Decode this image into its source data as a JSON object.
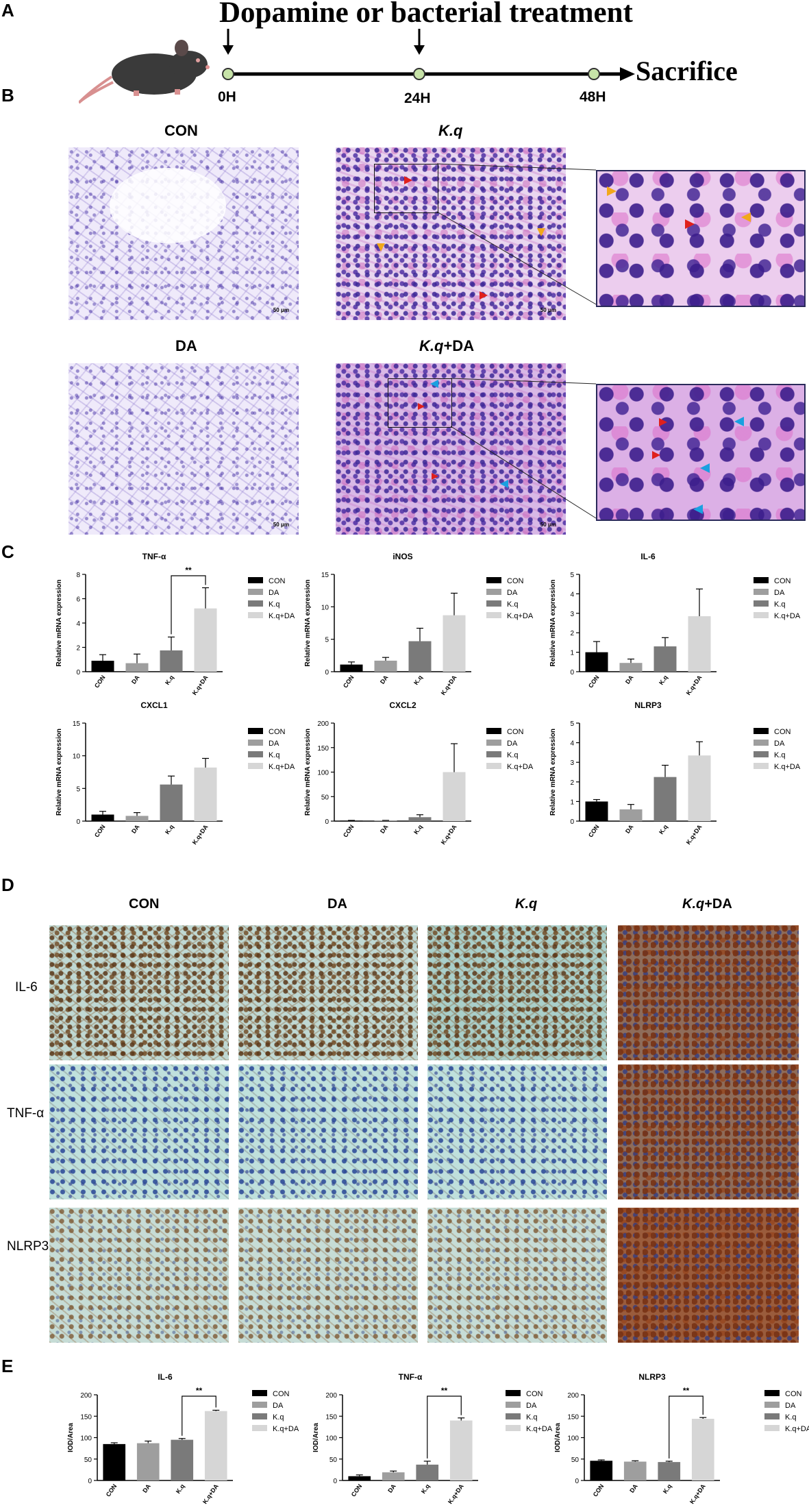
{
  "panels": {
    "A": "A",
    "B": "B",
    "C": "C",
    "D": "D",
    "E": "E"
  },
  "timeline": {
    "title": "Dopamine or bacterial treatment",
    "end_label": "Sacrifice",
    "timepoints": [
      "0H",
      "24H",
      "48H"
    ]
  },
  "he": {
    "con": "CON",
    "kq": "K.q",
    "da": "DA",
    "kqda_italic": "K.q",
    "kqda_rest": "+DA",
    "scale": "50 μm"
  },
  "ihc": {
    "columns": [
      "CON",
      "DA",
      "K.q",
      "+DA"
    ],
    "col4_italic": "K.q",
    "rows": [
      "IL-6",
      "TNF-α",
      "NLRP3"
    ]
  },
  "colors": {
    "con": "#000000",
    "da": "#9e9e9e",
    "kq": "#7a7a7a",
    "kqda": "#d6d6d6"
  },
  "legend_labels": [
    "CON",
    "DA",
    "K.q",
    "K.q+DA"
  ],
  "chart_data": [
    {
      "panel": "C",
      "type": "bar",
      "title": "TNF-α",
      "ylabel": "Relative mRNA expression",
      "categories": [
        "CON",
        "DA",
        "K.q",
        "K.q+DA"
      ],
      "values": [
        0.9,
        0.7,
        1.75,
        5.2
      ],
      "errors": [
        0.5,
        0.75,
        1.1,
        1.7
      ],
      "ylim": [
        0,
        8
      ],
      "yticks": [
        0,
        2,
        4,
        6,
        8
      ],
      "sig": {
        "from": 2,
        "to": 3,
        "label": "**"
      }
    },
    {
      "panel": "C",
      "type": "bar",
      "title": "iNOS",
      "ylabel": "Relative mRNA expression",
      "categories": [
        "CON",
        "DA",
        "K.q",
        "K.q+DA"
      ],
      "values": [
        1.1,
        1.7,
        4.7,
        8.7
      ],
      "errors": [
        0.4,
        0.5,
        2.0,
        3.4
      ],
      "ylim": [
        0,
        15
      ],
      "yticks": [
        0,
        5,
        10,
        15
      ]
    },
    {
      "panel": "C",
      "type": "bar",
      "title": "IL-6",
      "ylabel": "Relative mRNA expression",
      "categories": [
        "CON",
        "DA",
        "K.q",
        "K.q+DA"
      ],
      "values": [
        1.0,
        0.45,
        1.3,
        2.85
      ],
      "errors": [
        0.55,
        0.2,
        0.45,
        1.4
      ],
      "ylim": [
        0,
        5
      ],
      "yticks": [
        0,
        1,
        2,
        3,
        4,
        5
      ]
    },
    {
      "panel": "C",
      "type": "bar",
      "title": "CXCL1",
      "ylabel": "Relative mRNA expression",
      "categories": [
        "CON",
        "DA",
        "K.q",
        "K.q+DA"
      ],
      "values": [
        1.0,
        0.8,
        5.6,
        8.2
      ],
      "errors": [
        0.5,
        0.5,
        1.3,
        1.4
      ],
      "ylim": [
        0,
        15
      ],
      "yticks": [
        0,
        5,
        10,
        15
      ]
    },
    {
      "panel": "C",
      "type": "bar",
      "title": "CXCL2",
      "ylabel": "Relative mRNA expression",
      "categories": [
        "CON",
        "DA",
        "K.q",
        "K.q+DA"
      ],
      "values": [
        1,
        1,
        8,
        100
      ],
      "errors": [
        0.5,
        0.5,
        5,
        58
      ],
      "ylim": [
        0,
        200
      ],
      "yticks": [
        0,
        50,
        100,
        150,
        200
      ]
    },
    {
      "panel": "C",
      "type": "bar",
      "title": "NLRP3",
      "ylabel": "Relative mRNA expression",
      "categories": [
        "CON",
        "DA",
        "K.q",
        "K.q+DA"
      ],
      "values": [
        1.0,
        0.6,
        2.25,
        3.35
      ],
      "errors": [
        0.1,
        0.25,
        0.6,
        0.7
      ],
      "ylim": [
        0,
        5
      ],
      "yticks": [
        0,
        1,
        2,
        3,
        4,
        5
      ]
    },
    {
      "panel": "E",
      "type": "bar",
      "title": "IL-6",
      "ylabel": "IOD/Area",
      "categories": [
        "CON",
        "DA",
        "K.q",
        "K.q+DA"
      ],
      "values": [
        85,
        87,
        95,
        162
      ],
      "errors": [
        3,
        5,
        3,
        2
      ],
      "ylim": [
        0,
        200
      ],
      "yticks": [
        0,
        50,
        100,
        150,
        200
      ],
      "sig": {
        "from": 2,
        "to": 3,
        "label": "**"
      }
    },
    {
      "panel": "E",
      "type": "bar",
      "title": "TNF-α",
      "ylabel": "IOD/Area",
      "categories": [
        "CON",
        "DA",
        "K.q",
        "K.q+DA"
      ],
      "values": [
        10,
        19,
        37,
        140
      ],
      "errors": [
        3,
        3,
        8,
        6
      ],
      "ylim": [
        0,
        200
      ],
      "yticks": [
        0,
        50,
        100,
        150,
        200
      ],
      "sig": {
        "from": 2,
        "to": 3,
        "label": "**"
      }
    },
    {
      "panel": "E",
      "type": "bar",
      "title": "NLRP3",
      "ylabel": "IOD/Area",
      "categories": [
        "CON",
        "DA",
        "K.q",
        "K.q+DA"
      ],
      "values": [
        46,
        44,
        43,
        144
      ],
      "errors": [
        2,
        2,
        2,
        3
      ],
      "ylim": [
        0,
        200
      ],
      "yticks": [
        0,
        50,
        100,
        150,
        200
      ],
      "sig": {
        "from": 2,
        "to": 3,
        "label": "**"
      }
    }
  ]
}
